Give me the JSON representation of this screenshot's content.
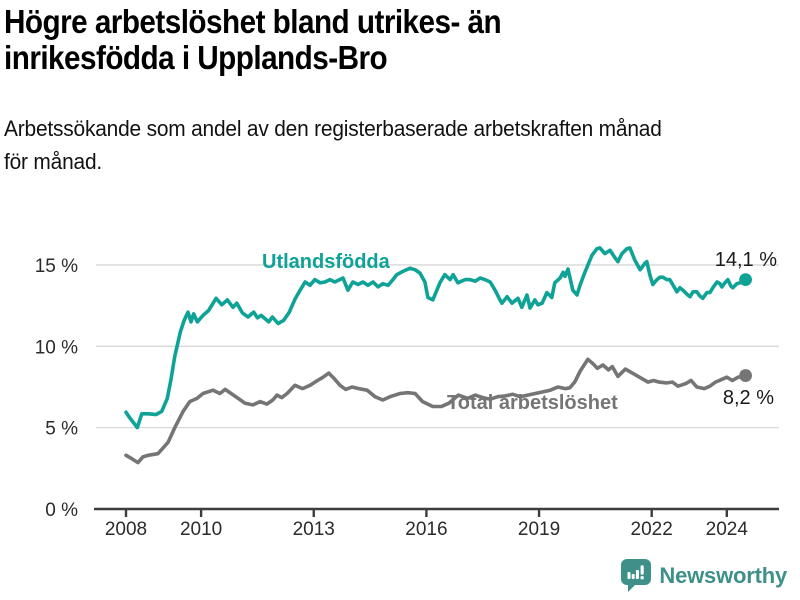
{
  "header": {
    "title_lines": [
      "Högre arbetslöshet bland utrikes- än",
      "inrikesfödda i Upplands-Bro"
    ],
    "subtitle_lines": [
      "Arbetssökande som andel av den registerbaserade arbetskraften månad",
      "för månad."
    ]
  },
  "footer": {
    "brand": "Newsworthy"
  },
  "colors": {
    "series_foreign": "#0fa297",
    "series_total": "#757575",
    "grid": "#d8d8d8",
    "axis": "#3d3d3d",
    "tick_text": "#2b2b2b",
    "value_text": "#1a1a1a",
    "brand": "#3e9089"
  },
  "chart_data": {
    "type": "line",
    "title": "Högre arbetslöshet bland utrikes- än inrikesfödda i Upplands-Bro",
    "subtitle": "Arbetssökande som andel av den registerbaserade arbetskraften månad för månad.",
    "xlabel": "",
    "ylabel": "",
    "xlim": [
      2007.9,
      2025.6
    ],
    "ylim": [
      0,
      17
    ],
    "grid": "horizontal",
    "legend_position": "inline-labels",
    "x_ticks": [
      {
        "value": 2008,
        "label": "2008"
      },
      {
        "value": 2010,
        "label": "2010"
      },
      {
        "value": 2013,
        "label": "2013"
      },
      {
        "value": 2016,
        "label": "2016"
      },
      {
        "value": 2019,
        "label": "2019"
      },
      {
        "value": 2022,
        "label": "2022"
      },
      {
        "value": 2024,
        "label": "2024"
      }
    ],
    "y_ticks": [
      {
        "value": 0,
        "label": "0 %"
      },
      {
        "value": 5,
        "label": "5 %"
      },
      {
        "value": 10,
        "label": "10 %"
      },
      {
        "value": 15,
        "label": "15 %"
      }
    ],
    "series": [
      {
        "name": "Utlandsfödda",
        "color": "#0fa297",
        "end_value": 14.1,
        "end_label": "14,1 %",
        "points": [
          [
            2008.0,
            5.95
          ],
          [
            2008.1,
            5.6
          ],
          [
            2008.3,
            5.0
          ],
          [
            2008.42,
            5.85
          ],
          [
            2008.6,
            5.85
          ],
          [
            2008.8,
            5.8
          ],
          [
            2008.95,
            6.0
          ],
          [
            2009.1,
            6.8
          ],
          [
            2009.2,
            8.0
          ],
          [
            2009.3,
            9.4
          ],
          [
            2009.45,
            10.9
          ],
          [
            2009.55,
            11.6
          ],
          [
            2009.65,
            12.1
          ],
          [
            2009.73,
            11.5
          ],
          [
            2009.8,
            12.0
          ],
          [
            2009.9,
            11.5
          ],
          [
            2010.05,
            11.9
          ],
          [
            2010.2,
            12.2
          ],
          [
            2010.4,
            12.95
          ],
          [
            2010.55,
            12.55
          ],
          [
            2010.7,
            12.85
          ],
          [
            2010.85,
            12.4
          ],
          [
            2010.95,
            12.65
          ],
          [
            2011.1,
            12.05
          ],
          [
            2011.25,
            11.8
          ],
          [
            2011.4,
            12.1
          ],
          [
            2011.5,
            11.75
          ],
          [
            2011.6,
            11.9
          ],
          [
            2011.8,
            11.5
          ],
          [
            2011.9,
            11.8
          ],
          [
            2012.05,
            11.4
          ],
          [
            2012.2,
            11.6
          ],
          [
            2012.35,
            12.1
          ],
          [
            2012.5,
            12.9
          ],
          [
            2012.65,
            13.5
          ],
          [
            2012.77,
            13.95
          ],
          [
            2012.9,
            13.75
          ],
          [
            2013.03,
            14.1
          ],
          [
            2013.17,
            13.9
          ],
          [
            2013.3,
            13.95
          ],
          [
            2013.43,
            14.1
          ],
          [
            2013.56,
            13.95
          ],
          [
            2013.78,
            14.2
          ],
          [
            2013.91,
            13.45
          ],
          [
            2014.04,
            13.95
          ],
          [
            2014.18,
            13.8
          ],
          [
            2014.31,
            13.95
          ],
          [
            2014.44,
            13.75
          ],
          [
            2014.58,
            13.95
          ],
          [
            2014.71,
            13.65
          ],
          [
            2014.84,
            13.85
          ],
          [
            2014.98,
            13.75
          ],
          [
            2015.11,
            14.1
          ],
          [
            2015.21,
            14.4
          ],
          [
            2015.37,
            14.6
          ],
          [
            2015.56,
            14.8
          ],
          [
            2015.7,
            14.7
          ],
          [
            2015.83,
            14.5
          ],
          [
            2015.96,
            13.95
          ],
          [
            2016.04,
            13.0
          ],
          [
            2016.17,
            12.85
          ],
          [
            2016.36,
            13.9
          ],
          [
            2016.49,
            14.4
          ],
          [
            2016.63,
            14.1
          ],
          [
            2016.71,
            14.4
          ],
          [
            2016.84,
            13.9
          ],
          [
            2017.03,
            14.1
          ],
          [
            2017.16,
            14.1
          ],
          [
            2017.3,
            14.0
          ],
          [
            2017.43,
            14.2
          ],
          [
            2017.56,
            14.1
          ],
          [
            2017.7,
            13.95
          ],
          [
            2017.83,
            13.45
          ],
          [
            2017.96,
            12.85
          ],
          [
            2018.01,
            12.65
          ],
          [
            2018.15,
            13.05
          ],
          [
            2018.28,
            12.65
          ],
          [
            2018.44,
            12.95
          ],
          [
            2018.54,
            12.4
          ],
          [
            2018.68,
            13.15
          ],
          [
            2018.76,
            12.35
          ],
          [
            2018.89,
            12.85
          ],
          [
            2018.97,
            12.55
          ],
          [
            2019.08,
            12.65
          ],
          [
            2019.21,
            13.3
          ],
          [
            2019.34,
            13.0
          ],
          [
            2019.42,
            13.9
          ],
          [
            2019.56,
            14.2
          ],
          [
            2019.64,
            14.55
          ],
          [
            2019.69,
            14.3
          ],
          [
            2019.77,
            14.75
          ],
          [
            2019.9,
            13.45
          ],
          [
            2020.01,
            13.15
          ],
          [
            2020.09,
            13.75
          ],
          [
            2020.22,
            14.55
          ],
          [
            2020.3,
            15.0
          ],
          [
            2020.41,
            15.6
          ],
          [
            2020.54,
            16.0
          ],
          [
            2020.62,
            16.05
          ],
          [
            2020.75,
            15.7
          ],
          [
            2020.89,
            15.9
          ],
          [
            2021.02,
            15.45
          ],
          [
            2021.1,
            15.2
          ],
          [
            2021.21,
            15.7
          ],
          [
            2021.34,
            16.0
          ],
          [
            2021.42,
            16.05
          ],
          [
            2021.55,
            15.3
          ],
          [
            2021.69,
            14.7
          ],
          [
            2021.82,
            15.1
          ],
          [
            2021.87,
            15.2
          ],
          [
            2021.95,
            14.4
          ],
          [
            2022.03,
            13.8
          ],
          [
            2022.14,
            14.1
          ],
          [
            2022.22,
            14.25
          ],
          [
            2022.3,
            14.25
          ],
          [
            2022.4,
            14.1
          ],
          [
            2022.48,
            14.1
          ],
          [
            2022.56,
            13.8
          ],
          [
            2022.67,
            13.35
          ],
          [
            2022.75,
            13.6
          ],
          [
            2022.83,
            13.45
          ],
          [
            2022.94,
            13.2
          ],
          [
            2023.02,
            13.05
          ],
          [
            2023.1,
            13.35
          ],
          [
            2023.2,
            13.35
          ],
          [
            2023.28,
            13.1
          ],
          [
            2023.36,
            12.95
          ],
          [
            2023.47,
            13.3
          ],
          [
            2023.55,
            13.3
          ],
          [
            2023.63,
            13.6
          ],
          [
            2023.74,
            13.95
          ],
          [
            2023.82,
            13.85
          ],
          [
            2023.87,
            13.65
          ],
          [
            2023.95,
            13.9
          ],
          [
            2024.03,
            14.1
          ],
          [
            2024.11,
            13.7
          ],
          [
            2024.16,
            13.6
          ],
          [
            2024.27,
            13.85
          ],
          [
            2024.35,
            13.9
          ],
          [
            2024.43,
            13.95
          ],
          [
            2024.5,
            14.1
          ]
        ]
      },
      {
        "name": "Total arbetslöshet",
        "color": "#757575",
        "end_value": 8.2,
        "end_label": "8,2 %",
        "points": [
          [
            2008.0,
            3.3
          ],
          [
            2008.15,
            3.1
          ],
          [
            2008.32,
            2.85
          ],
          [
            2008.45,
            3.2
          ],
          [
            2008.59,
            3.3
          ],
          [
            2008.85,
            3.4
          ],
          [
            2009.12,
            4.1
          ],
          [
            2009.3,
            5.0
          ],
          [
            2009.52,
            6.0
          ],
          [
            2009.7,
            6.6
          ],
          [
            2009.89,
            6.8
          ],
          [
            2010.05,
            7.1
          ],
          [
            2010.32,
            7.3
          ],
          [
            2010.5,
            7.1
          ],
          [
            2010.64,
            7.35
          ],
          [
            2010.96,
            6.85
          ],
          [
            2011.17,
            6.5
          ],
          [
            2011.38,
            6.4
          ],
          [
            2011.57,
            6.6
          ],
          [
            2011.75,
            6.45
          ],
          [
            2011.91,
            6.7
          ],
          [
            2012.02,
            7.0
          ],
          [
            2012.15,
            6.85
          ],
          [
            2012.29,
            7.1
          ],
          [
            2012.5,
            7.6
          ],
          [
            2012.7,
            7.4
          ],
          [
            2012.9,
            7.6
          ],
          [
            2013.1,
            7.9
          ],
          [
            2013.25,
            8.1
          ],
          [
            2013.4,
            8.35
          ],
          [
            2013.55,
            8.0
          ],
          [
            2013.7,
            7.6
          ],
          [
            2013.85,
            7.35
          ],
          [
            2014.02,
            7.5
          ],
          [
            2014.2,
            7.4
          ],
          [
            2014.42,
            7.3
          ],
          [
            2014.63,
            6.9
          ],
          [
            2014.84,
            6.7
          ],
          [
            2015.03,
            6.9
          ],
          [
            2015.3,
            7.1
          ],
          [
            2015.5,
            7.15
          ],
          [
            2015.7,
            7.1
          ],
          [
            2015.9,
            6.6
          ],
          [
            2016.17,
            6.3
          ],
          [
            2016.4,
            6.3
          ],
          [
            2016.6,
            6.5
          ],
          [
            2016.85,
            7.0
          ],
          [
            2017.1,
            6.8
          ],
          [
            2017.3,
            7.0
          ],
          [
            2017.5,
            6.85
          ],
          [
            2017.7,
            6.75
          ],
          [
            2017.9,
            6.9
          ],
          [
            2018.1,
            6.95
          ],
          [
            2018.3,
            7.05
          ],
          [
            2018.5,
            6.9
          ],
          [
            2018.7,
            7.0
          ],
          [
            2018.9,
            7.1
          ],
          [
            2019.1,
            7.2
          ],
          [
            2019.3,
            7.3
          ],
          [
            2019.5,
            7.5
          ],
          [
            2019.7,
            7.4
          ],
          [
            2019.82,
            7.45
          ],
          [
            2019.95,
            7.8
          ],
          [
            2020.1,
            8.5
          ],
          [
            2020.3,
            9.2
          ],
          [
            2020.45,
            8.9
          ],
          [
            2020.55,
            8.65
          ],
          [
            2020.7,
            8.85
          ],
          [
            2020.85,
            8.55
          ],
          [
            2020.95,
            8.75
          ],
          [
            2021.1,
            8.15
          ],
          [
            2021.3,
            8.6
          ],
          [
            2021.45,
            8.4
          ],
          [
            2021.6,
            8.2
          ],
          [
            2021.75,
            8.0
          ],
          [
            2021.9,
            7.8
          ],
          [
            2022.05,
            7.9
          ],
          [
            2022.2,
            7.8
          ],
          [
            2022.4,
            7.75
          ],
          [
            2022.55,
            7.8
          ],
          [
            2022.7,
            7.55
          ],
          [
            2022.9,
            7.7
          ],
          [
            2023.05,
            7.9
          ],
          [
            2023.2,
            7.5
          ],
          [
            2023.4,
            7.4
          ],
          [
            2023.55,
            7.55
          ],
          [
            2023.7,
            7.8
          ],
          [
            2023.85,
            7.95
          ],
          [
            2024.0,
            8.1
          ],
          [
            2024.15,
            7.9
          ],
          [
            2024.3,
            8.1
          ],
          [
            2024.42,
            8.15
          ],
          [
            2024.5,
            8.2
          ]
        ]
      }
    ]
  }
}
